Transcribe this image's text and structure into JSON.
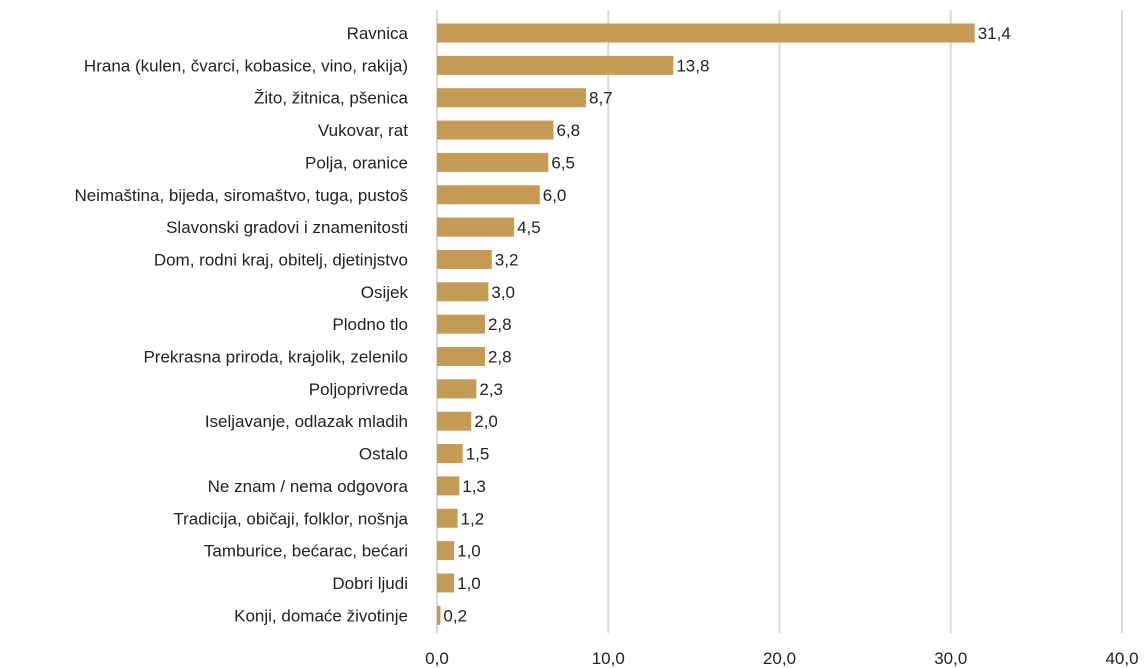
{
  "chart_data": {
    "type": "bar",
    "orientation": "horizontal",
    "categories": [
      "Ravnica",
      "Hrana (kulen, čvarci, kobasice, vino, rakija)",
      "Žito, žitnica, pšenica",
      "Vukovar, rat",
      "Polja, oranice",
      "Neimaština, bijeda, siromaštvo, tuga, pustoš",
      "Slavonski gradovi i znamenitosti",
      "Dom, rodni kraj, obitelj, djetinjstvo",
      "Osijek",
      "Plodno tlo",
      "Prekrasna priroda, krajolik, zelenilo",
      "Poljoprivreda",
      "Iseljavanje, odlazak mladih",
      "Ostalo",
      "Ne znam / nema odgovora",
      "Tradicija, običaji, folklor, nošnja",
      "Tamburice, bećarac, bećari",
      "Dobri ljudi",
      "Konji, domaće životinje"
    ],
    "values": [
      31.4,
      13.8,
      8.7,
      6.8,
      6.5,
      6.0,
      4.5,
      3.2,
      3.0,
      2.8,
      2.8,
      2.3,
      2.0,
      1.5,
      1.3,
      1.2,
      1.0,
      1.0,
      0.2
    ],
    "value_labels": [
      "31,4",
      "13,8",
      "8,7",
      "6,8",
      "6,5",
      "6,0",
      "4,5",
      "3,2",
      "3,0",
      "2,8",
      "2,8",
      "2,3",
      "2,0",
      "1,5",
      "1,3",
      "1,2",
      "1,0",
      "1,0",
      "0,2"
    ],
    "xlim": [
      0,
      40
    ],
    "x_ticks": [
      0,
      10,
      20,
      30,
      40
    ],
    "x_tick_labels": [
      "0,0",
      "10,0",
      "20,0",
      "30,0",
      "40,0"
    ],
    "grid": "vertical",
    "legend": "none",
    "title": "",
    "xlabel": "",
    "ylabel": "",
    "colors": {
      "bar": "#C49A54",
      "grid": "#D9D9D9",
      "text": "#222222"
    }
  }
}
